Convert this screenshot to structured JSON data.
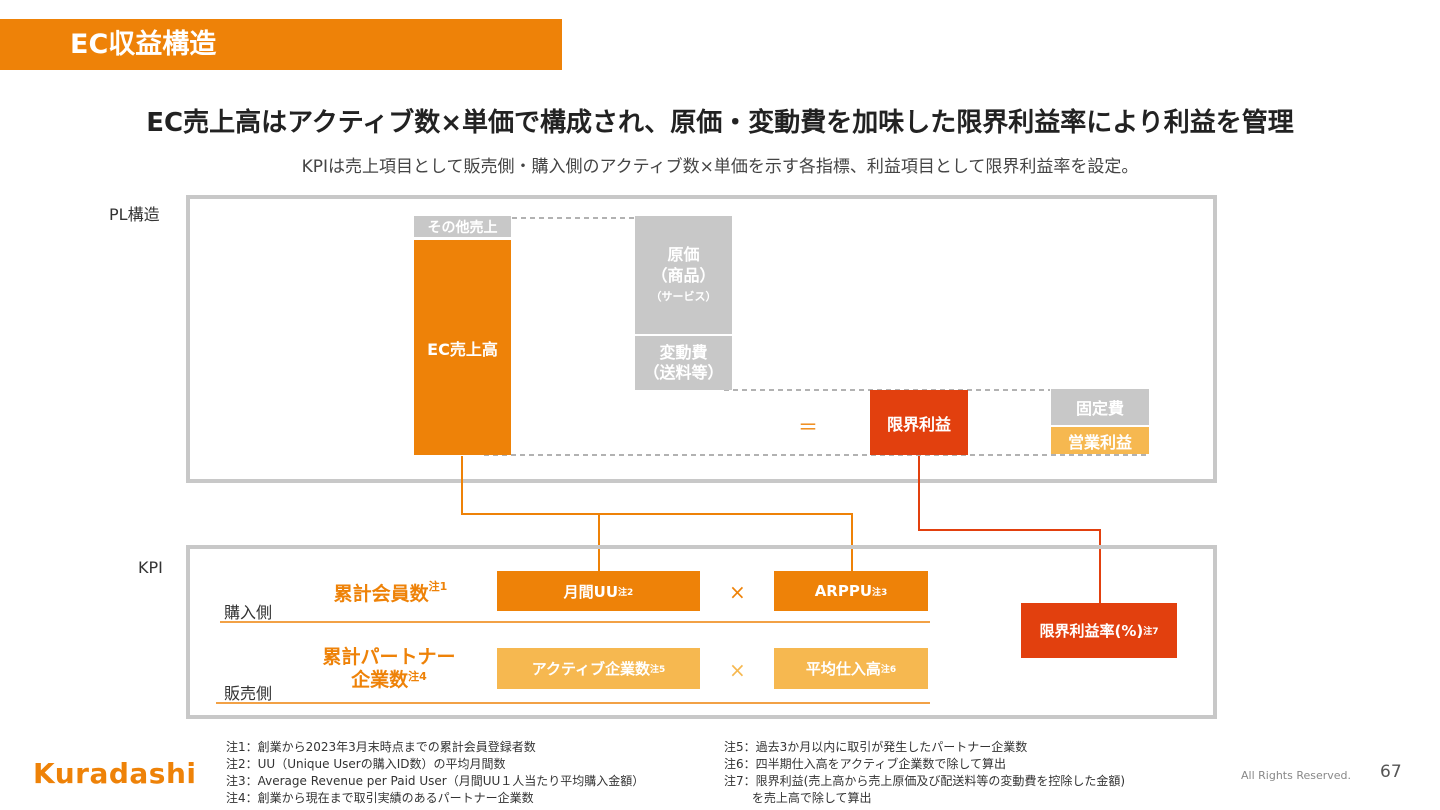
{
  "header": {
    "title": "EC収益構造"
  },
  "headline": "EC売上高はアクティブ数×単価で構成され、原価・変動費を加味した限界利益率により利益を管理",
  "subline": "KPIは売上項目として販売側・購入側のアクティブ数×単価を示す各指標、利益項目として限界利益率を設定。",
  "pl": {
    "section_label": "PL構造",
    "other_sales": "その他売上",
    "ec_sales": "EC売上高",
    "cost_line1": "原価",
    "cost_line2": "（商品）",
    "cost_line3": "（サービス）",
    "variable_line1": "変動費",
    "variable_line2": "（送料等）",
    "equals": "＝",
    "marginal_profit": "限界利益",
    "fixed_cost": "固定費",
    "operating_profit": "営業利益"
  },
  "kpi": {
    "section_label": "KPI",
    "buyer_side": "購入側",
    "seller_side": "販売側",
    "members_label": "累計会員数",
    "members_note": "注1",
    "partners_line1": "累計パートナー",
    "partners_line2": "企業数",
    "partners_note": "注4",
    "monthly_uu": "月間UU",
    "monthly_uu_note": "注2",
    "arppu": "ARPPU",
    "arppu_note": "注3",
    "active_companies": "アクティブ企業数",
    "active_companies_note": "注5",
    "avg_purchase": "平均仕入高",
    "avg_purchase_note": "注6",
    "times": "×",
    "marginal_rate": "限界利益率(%)",
    "marginal_rate_note": "注7"
  },
  "notes": {
    "left": [
      "注1：創業から2023年3月末時点までの累計会員登録者数",
      "注2：UU（Unique Userの購入ID数）の平均月間数",
      "注3：Average Revenue per Paid User（月間UU１人当たり平均購入金額）",
      "注4：創業から現在まで取引実績のあるパートナー企業数"
    ],
    "right": [
      "注5：過去3か月以内に取引が発生したパートナー企業数",
      "注6：四半期仕入高をアクティブ企業数で除して算出",
      "注7：限界利益(売上高から売上原価及び配送料等の変動費を控除した金額)",
      "　　 を売上高で除して算出"
    ]
  },
  "footer": {
    "logo": "Kuradashi",
    "rights": "All Rights Reserved.",
    "page": "67"
  },
  "colors": {
    "orange": "#ee8208",
    "gray": "#c8c8c8",
    "red": "#e2400e",
    "light_orange": "#f6b850"
  }
}
